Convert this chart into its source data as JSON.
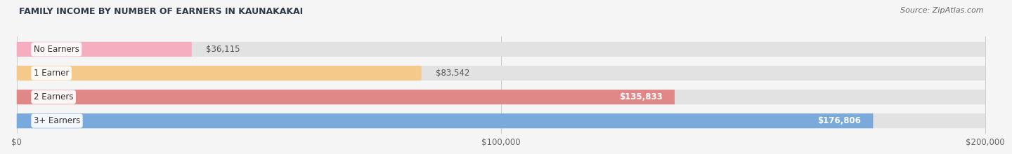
{
  "title": "FAMILY INCOME BY NUMBER OF EARNERS IN KAUNAKAKAI",
  "source": "Source: ZipAtlas.com",
  "categories": [
    "No Earners",
    "1 Earner",
    "2 Earners",
    "3+ Earners"
  ],
  "values": [
    36115,
    83542,
    135833,
    176806
  ],
  "bar_colors": [
    "#f5aec0",
    "#f5c98a",
    "#e08888",
    "#7aaadc"
  ],
  "label_colors": [
    "#555555",
    "#555555",
    "#ffffff",
    "#ffffff"
  ],
  "xmax": 200000,
  "xticks": [
    0,
    100000,
    200000
  ],
  "xtick_labels": [
    "$0",
    "$100,000",
    "$200,000"
  ],
  "bg_color": "#f5f5f5",
  "bar_bg_color": "#e2e2e2",
  "title_color": "#2e3a4a",
  "source_color": "#666666"
}
